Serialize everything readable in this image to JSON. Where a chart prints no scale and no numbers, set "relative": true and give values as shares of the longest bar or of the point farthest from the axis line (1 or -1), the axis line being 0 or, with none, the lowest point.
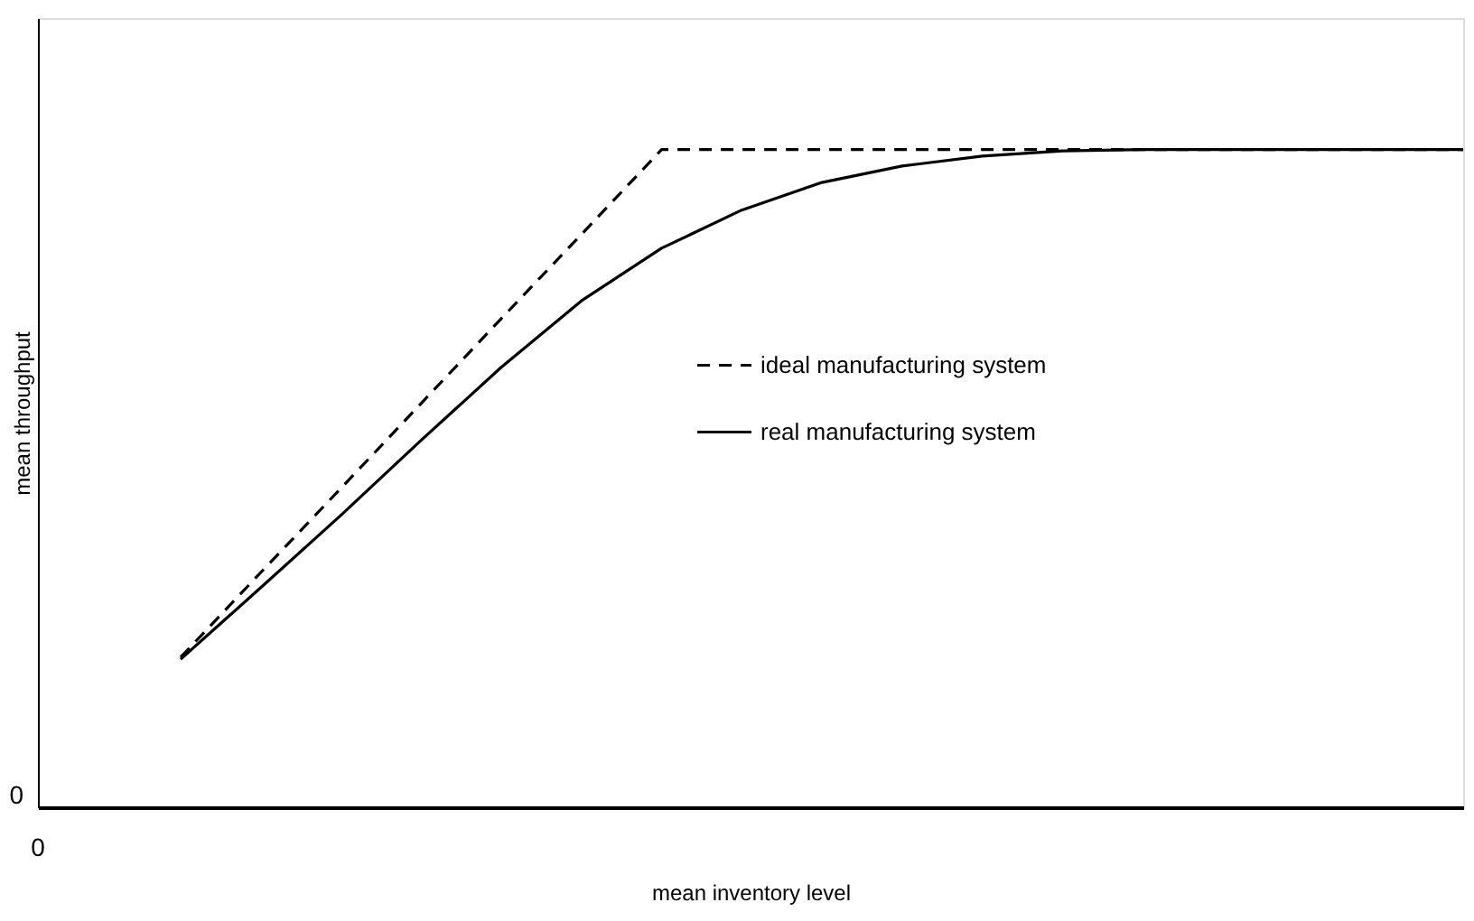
{
  "chart_data": {
    "type": "line",
    "relative": true,
    "xlabel": "mean inventory level",
    "ylabel": "mean throughput",
    "grid": false,
    "legend": "right",
    "marker": "none",
    "annotations": [
      "0",
      "0"
    ],
    "categories": [
      null,
      null,
      null,
      null,
      null,
      null,
      null,
      null,
      null,
      null,
      null,
      null,
      null,
      null,
      null,
      null,
      null
    ],
    "series": [
      {
        "name": "ideal manufacturing system",
        "color": "#000000",
        "line_style": "dashed",
        "values": [
          0.228,
          0.357,
          0.485,
          0.614,
          0.743,
          0.871,
          1,
          1,
          1,
          1,
          1,
          1,
          1,
          1,
          1,
          1,
          1
        ]
      },
      {
        "name": "real manufacturing system",
        "color": "#000000",
        "line_style": "solid",
        "values": [
          0.225,
          0.334,
          0.444,
          0.558,
          0.669,
          0.77,
          0.85,
          0.908,
          0.95,
          0.975,
          0.99,
          0.998,
          1,
          1,
          1,
          1,
          1
        ]
      }
    ]
  }
}
